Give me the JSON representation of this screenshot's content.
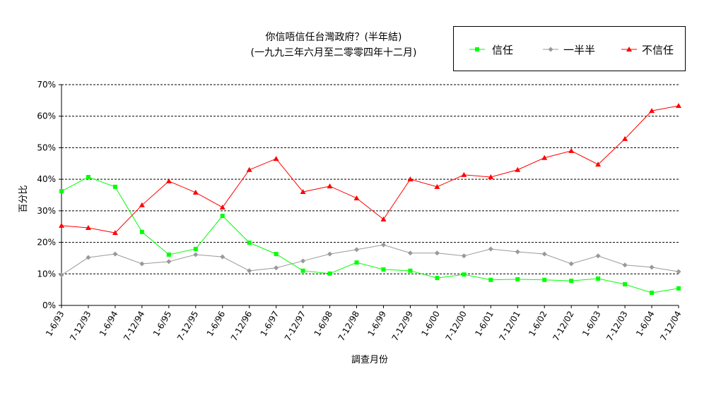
{
  "chart_data": {
    "type": "line",
    "title": "你信唔信任台灣政府？(半年結)",
    "subtitle": "(一九九三年六月至二零零四年十二月)",
    "xlabel": "調查月份",
    "ylabel": "百分比",
    "ylim": [
      0,
      70
    ],
    "grid": true,
    "legend": {
      "position": "top-right"
    },
    "yticks": [
      {
        "value": 0,
        "label": "0%"
      },
      {
        "value": 10,
        "label": "10%"
      },
      {
        "value": 20,
        "label": "20%"
      },
      {
        "value": 30,
        "label": "30%"
      },
      {
        "value": 40,
        "label": "40%"
      },
      {
        "value": 50,
        "label": "50%"
      },
      {
        "value": 60,
        "label": "60%"
      },
      {
        "value": 70,
        "label": "70%"
      }
    ],
    "categories": [
      "1-6/93",
      "7-12/93",
      "1-6/94",
      "7-12/94",
      "1-6/95",
      "7-12/95",
      "1-6/96",
      "7-12/96",
      "1-6/97",
      "7-12/97",
      "1-6/98",
      "7-12/98",
      "1-6/99",
      "7-12/99",
      "1-6/00",
      "7-12/00",
      "1-6/01",
      "7-12/01",
      "1-6/02",
      "7-12/02",
      "1-6/03",
      "7-12/03",
      "1-6/04",
      "7-12/04"
    ],
    "series": [
      {
        "name": "信任",
        "color": "#00FF00",
        "marker": "square",
        "values": [
          36.2,
          40.7,
          37.6,
          23.3,
          16.1,
          17.9,
          28.4,
          19.9,
          16.3,
          11.0,
          10.1,
          13.6,
          11.4,
          11.0,
          8.7,
          9.8,
          8.1,
          8.3,
          8.1,
          7.8,
          8.5,
          6.7,
          4.0,
          5.4
        ]
      },
      {
        "name": "一半半",
        "color": "#999999",
        "marker": "diamond",
        "values": [
          9.6,
          15.2,
          16.3,
          13.2,
          13.9,
          16.1,
          15.4,
          11.0,
          11.9,
          14.1,
          16.3,
          17.7,
          19.2,
          16.6,
          16.6,
          15.7,
          17.9,
          17.0,
          16.3,
          13.2,
          15.7,
          12.8,
          12.1,
          10.7
        ]
      },
      {
        "name": "不信任",
        "color": "#FF0000",
        "marker": "triangle",
        "values": [
          25.3,
          24.6,
          23.0,
          31.8,
          39.4,
          35.8,
          31.1,
          43.0,
          46.5,
          36.0,
          37.8,
          34.0,
          27.3,
          40.0,
          37.6,
          41.4,
          40.7,
          43.0,
          46.8,
          49.0,
          44.7,
          52.8,
          61.7,
          63.3
        ]
      }
    ]
  }
}
